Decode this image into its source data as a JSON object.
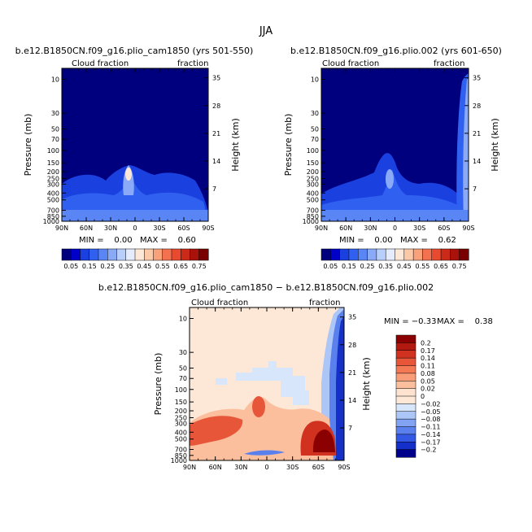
{
  "page_title": "JJA",
  "chart_data": [
    {
      "type": "heatmap",
      "title": "b.e12.B1850CN.f09_g16.plio_cam1850 (yrs 501-550)",
      "left_label": "Cloud fraction",
      "right_label": "fraction",
      "ylabel": "Pressure (mb)",
      "y2label": "Height (km)",
      "x_ticks": [
        "90N",
        "60N",
        "30N",
        "0",
        "30S",
        "60S",
        "90S"
      ],
      "y_ticks": [
        "10",
        "30",
        "50",
        "70",
        "100",
        "150",
        "200",
        "250",
        "300",
        "400",
        "500",
        "700",
        "850",
        "1000"
      ],
      "y2_ticks": [
        "35",
        "28",
        "21",
        "14",
        "7"
      ],
      "min_text": "MIN =    0.00",
      "max_text": "MAX =    0.60",
      "min": 0.0,
      "max": 0.6,
      "colorbar": {
        "labels": [
          "0.05",
          "0.15",
          "0.25",
          "0.35",
          "0.45",
          "0.55",
          "0.65",
          "0.75"
        ],
        "colors": [
          "#00007f",
          "#0000c8",
          "#1a40e0",
          "#3060f0",
          "#5a86f5",
          "#8aaaf8",
          "#b9cffb",
          "#e4ecfd",
          "#fde8d8",
          "#fcc9a8",
          "#f9a17b",
          "#f4714f",
          "#e84a30",
          "#cc2a18",
          "#a8120a",
          "#7a0000"
        ]
      }
    },
    {
      "type": "heatmap",
      "title": "b.e12.B1850CN.f09_g16.plio.002 (yrs 601-650)",
      "left_label": "Cloud fraction",
      "right_label": "fraction",
      "ylabel": "Pressure (mb)",
      "y2label": "Height (km)",
      "x_ticks": [
        "90N",
        "60N",
        "30N",
        "0",
        "30S",
        "60S",
        "90S"
      ],
      "y_ticks": [
        "10",
        "30",
        "50",
        "70",
        "100",
        "150",
        "200",
        "250",
        "300",
        "400",
        "500",
        "700",
        "850",
        "1000"
      ],
      "y2_ticks": [
        "35",
        "28",
        "21",
        "14",
        "7"
      ],
      "min_text": "MIN =    0.00",
      "max_text": "MAX =    0.62",
      "min": 0.0,
      "max": 0.62,
      "colorbar": {
        "labels": [
          "0.05",
          "0.15",
          "0.25",
          "0.35",
          "0.45",
          "0.55",
          "0.65",
          "0.75"
        ],
        "colors": [
          "#00007f",
          "#0000c8",
          "#1a40e0",
          "#3060f0",
          "#5a86f5",
          "#8aaaf8",
          "#b9cffb",
          "#e4ecfd",
          "#fde8d8",
          "#fcc9a8",
          "#f9a17b",
          "#f4714f",
          "#e84a30",
          "#cc2a18",
          "#a8120a",
          "#7a0000"
        ]
      }
    },
    {
      "type": "heatmap",
      "title": "b.e12.B1850CN.f09_g16.plio_cam1850 − b.e12.B1850CN.f09_g16.plio.002",
      "left_label": "Cloud fraction",
      "right_label": "fraction",
      "ylabel": "Pressure (mb)",
      "y2label": "Height (km)",
      "x_ticks": [
        "90N",
        "60N",
        "30N",
        "0",
        "30S",
        "60S",
        "90S"
      ],
      "y_ticks": [
        "10",
        "30",
        "50",
        "70",
        "100",
        "150",
        "200",
        "250",
        "300",
        "400",
        "500",
        "700",
        "850",
        "1000"
      ],
      "y2_ticks": [
        "35",
        "28",
        "21",
        "14",
        "7"
      ],
      "min_text": "MIN = −0.33",
      "max_text": "MAX =    0.38",
      "min": -0.33,
      "max": 0.38,
      "colorbar": {
        "labels": [
          "0.2",
          "0.17",
          "0.14",
          "0.11",
          "0.08",
          "0.05",
          "0.02",
          "0",
          "−0.02",
          "−0.05",
          "−0.08",
          "−0.11",
          "−0.14",
          "−0.17",
          "−0.2"
        ],
        "colors": [
          "#8b0000",
          "#b21a0f",
          "#d1321f",
          "#e8563a",
          "#f47a55",
          "#f99c78",
          "#fbbf9e",
          "#fde3cf",
          "#fde8d8",
          "#d8e6fb",
          "#adc6f8",
          "#82a3f4",
          "#5a80ee",
          "#3358e4",
          "#1430c8",
          "#00008b"
        ]
      }
    }
  ]
}
